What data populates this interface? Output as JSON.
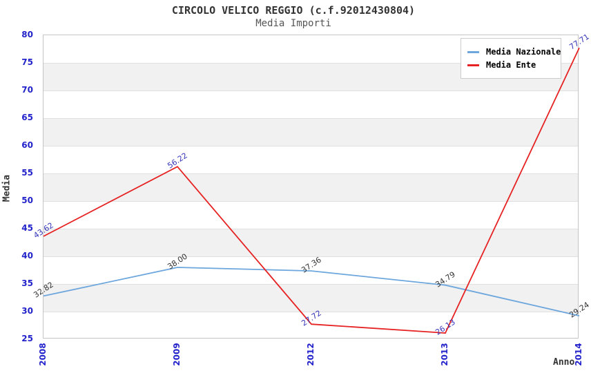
{
  "title": "CIRCOLO VELICO REGGIO (c.f.92012430804)",
  "subtitle": "Media Importi",
  "axes": {
    "y_label": "Media",
    "x_label": "Anno",
    "tick_color": "#2323cc"
  },
  "legend": {
    "position": "top-right",
    "items": [
      {
        "label": "Media Nazionale",
        "color": "#6ca6dd"
      },
      {
        "label": "Media Ente",
        "color": "#e62222"
      }
    ]
  },
  "chart_data": {
    "type": "line",
    "title": "CIRCOLO VELICO REGGIO (c.f.92012430804)",
    "subtitle": "Media Importi",
    "xlabel": "Anno",
    "ylabel": "Media",
    "categories": [
      "2008",
      "2009",
      "2012",
      "2013",
      "2014"
    ],
    "series": [
      {
        "name": "Media Nazionale",
        "values": [
          32.82,
          38.0,
          37.36,
          34.79,
          29.24
        ],
        "color": "#6ca6dd",
        "label_color": "#333333"
      },
      {
        "name": "Media Ente",
        "values": [
          43.62,
          56.22,
          27.72,
          26.13,
          77.71
        ],
        "color": "#e62222",
        "label_color": "#3434b8"
      }
    ],
    "ylim": [
      25,
      80
    ],
    "yticks": [
      25,
      30,
      35,
      40,
      45,
      50,
      55,
      60,
      65,
      70,
      75,
      80
    ],
    "grid": true,
    "band_color": "#f1f1f1",
    "legend_position": "top-right"
  }
}
